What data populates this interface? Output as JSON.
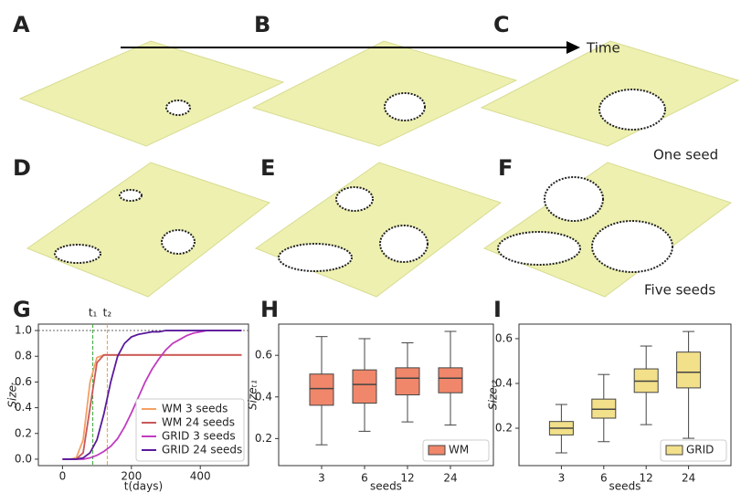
{
  "figure": {
    "panel_labels": [
      "A",
      "B",
      "C",
      "D",
      "E",
      "F",
      "G",
      "H",
      "I"
    ],
    "time_label": "Time",
    "row_labels": [
      "One seed",
      "Five seeds"
    ]
  },
  "chart_data": [
    {
      "type": "line",
      "xlabel": "t(days)",
      "ylabel": "Sizeₜ",
      "x": [
        0,
        20,
        40,
        60,
        80,
        100,
        120,
        140,
        160,
        180,
        200,
        220,
        240,
        260,
        280,
        300,
        320,
        340,
        360,
        380,
        400,
        420,
        440,
        460,
        480,
        500,
        520
      ],
      "series": [
        {
          "name": "WM 3 seeds",
          "color": "#f4a064",
          "values": [
            0,
            0,
            0.01,
            0.15,
            0.6,
            0.79,
            0.81,
            0.81,
            0.81,
            0.81,
            0.81,
            0.81,
            0.81,
            0.81,
            0.81,
            0.81,
            0.81,
            0.81,
            0.81,
            0.81,
            0.81,
            0.81,
            0.81,
            0.81,
            0.81,
            0.81,
            0.81
          ]
        },
        {
          "name": "WM 24 seeds",
          "color": "#c8585a",
          "values": [
            0,
            0,
            0,
            0.05,
            0.4,
            0.75,
            0.81,
            0.81,
            0.81,
            0.81,
            0.81,
            0.81,
            0.81,
            0.81,
            0.81,
            0.81,
            0.81,
            0.81,
            0.81,
            0.81,
            0.81,
            0.81,
            0.81,
            0.81,
            0.81,
            0.81,
            0.81
          ]
        },
        {
          "name": "GRID 3 seeds",
          "color": "#c03cc0",
          "values": [
            0,
            0,
            0,
            0,
            0.01,
            0.03,
            0.06,
            0.1,
            0.16,
            0.25,
            0.36,
            0.48,
            0.6,
            0.7,
            0.78,
            0.85,
            0.9,
            0.93,
            0.96,
            0.98,
            0.99,
            1,
            1,
            1,
            1,
            1,
            1
          ]
        },
        {
          "name": "GRID 24 seeds",
          "color": "#5a1a9a",
          "values": [
            0,
            0,
            0,
            0.01,
            0.05,
            0.15,
            0.35,
            0.6,
            0.8,
            0.9,
            0.95,
            0.97,
            0.98,
            0.99,
            0.99,
            1,
            1,
            1,
            1,
            1,
            1,
            1,
            1,
            1,
            1,
            1,
            1
          ]
        }
      ],
      "reference_lines": [
        {
          "x": 88,
          "label": "t₁",
          "color": "#3aa63a"
        },
        {
          "x": 130,
          "label": "t₂",
          "color": "#f0a030"
        }
      ],
      "hline": 1,
      "xlim": [
        -70,
        540
      ],
      "xticks": [
        0,
        200,
        400
      ],
      "ylim": [
        -0.05,
        1.05
      ],
      "yticks": [
        {
          "value": 0,
          "label": "0.0"
        },
        0.2,
        0.4,
        0.6,
        0.8,
        {
          "value": 1,
          "label": "1.0"
        }
      ],
      "legend": "lower right"
    },
    {
      "type": "box",
      "xlabel": "seeds",
      "ylabel": "Sizeₜ₁",
      "categories": [
        "3",
        "6",
        "12",
        "24"
      ],
      "series": [
        {
          "name": "WM",
          "color": "#f0866a",
          "whislo": [
            0.17,
            0.235,
            0.28,
            0.265
          ],
          "q1": [
            0.36,
            0.37,
            0.41,
            0.42
          ],
          "med": [
            0.44,
            0.46,
            0.49,
            0.49
          ],
          "q3": [
            0.51,
            0.53,
            0.54,
            0.54
          ],
          "whishi": [
            0.69,
            0.68,
            0.66,
            0.715
          ]
        }
      ],
      "ylim": [
        0.07,
        0.75
      ],
      "yticks": [
        0.2,
        0.4,
        0.6
      ],
      "legend": "lower right"
    },
    {
      "type": "box",
      "xlabel": "seeds",
      "ylabel": "Sizeₜ₂",
      "categories": [
        "3",
        "6",
        "12",
        "24"
      ],
      "series": [
        {
          "name": "GRID",
          "color": "#f2e08a",
          "whislo": [
            0.09,
            0.14,
            0.216,
            0.155
          ],
          "q1": [
            0.17,
            0.245,
            0.36,
            0.38
          ],
          "med": [
            0.2,
            0.285,
            0.41,
            0.45
          ],
          "q3": [
            0.23,
            0.33,
            0.465,
            0.54
          ],
          "whishi": [
            0.306,
            0.44,
            0.567,
            0.632
          ]
        }
      ],
      "ylim": [
        0.033,
        0.665
      ],
      "yticks": [
        0.2,
        0.4,
        0.6
      ],
      "legend": "lower right"
    }
  ]
}
